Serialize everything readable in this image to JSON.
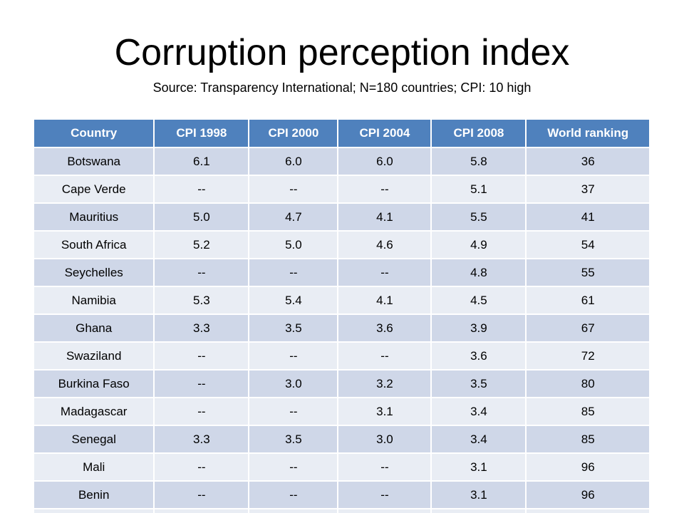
{
  "slide": {
    "title": "Corruption perception index",
    "subtitle": "Source: Transparency International; N=180 countries; CPI: 10 high"
  },
  "table": {
    "headers": [
      "Country",
      "CPI 1998",
      "CPI 2000",
      "CPI 2004",
      "CPI 2008",
      "World ranking"
    ],
    "rows": [
      [
        "Botswana",
        "6.1",
        "6.0",
        "6.0",
        "5.8",
        "36"
      ],
      [
        "Cape Verde",
        "--",
        "--",
        "--",
        "5.1",
        "37"
      ],
      [
        "Mauritius",
        "5.0",
        "4.7",
        "4.1",
        "5.5",
        "41"
      ],
      [
        "South Africa",
        "5.2",
        "5.0",
        "4.6",
        "4.9",
        "54"
      ],
      [
        "Seychelles",
        "--",
        "--",
        "--",
        "4.8",
        "55"
      ],
      [
        "Namibia",
        "5.3",
        "5.4",
        "4.1",
        "4.5",
        "61"
      ],
      [
        "Ghana",
        "3.3",
        "3.5",
        "3.6",
        "3.9",
        "67"
      ],
      [
        "Swaziland",
        "--",
        "--",
        "--",
        "3.6",
        "72"
      ],
      [
        "Burkina Faso",
        "--",
        "3.0",
        "3.2",
        "3.5",
        "80"
      ],
      [
        "Madagascar",
        "--",
        "--",
        "3.1",
        "3.4",
        "85"
      ],
      [
        "Senegal",
        "3.3",
        "3.5",
        "3.0",
        "3.4",
        "85"
      ],
      [
        "Mali",
        "--",
        "--",
        "--",
        "3.1",
        "96"
      ],
      [
        "Benin",
        "--",
        "--",
        "--",
        "3.1",
        "96"
      ]
    ]
  },
  "colors": {
    "header_bg": "#4f81bd",
    "row_dark": "#cfd7e8",
    "row_light": "#e9edf4"
  }
}
